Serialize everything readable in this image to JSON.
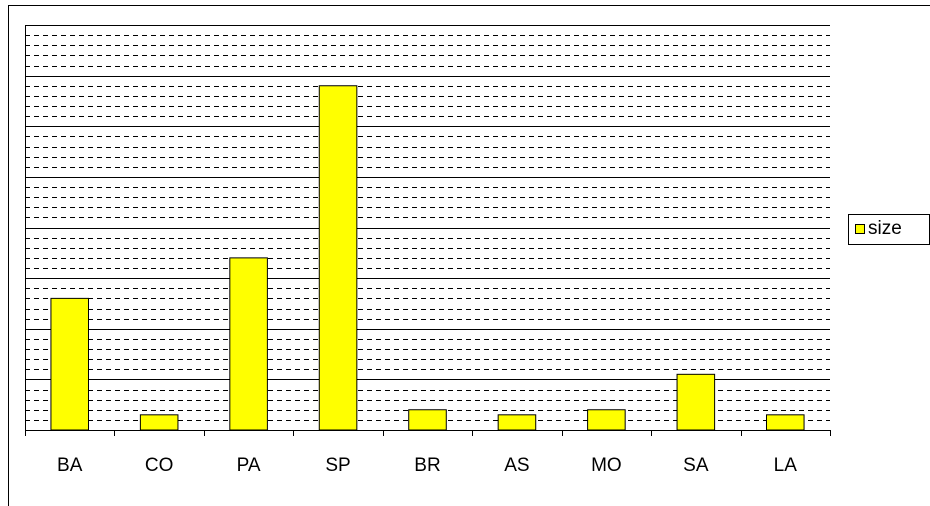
{
  "chart_data": {
    "type": "bar",
    "categories": [
      "BA",
      "CO",
      "PA",
      "SP",
      "BR",
      "AS",
      "MO",
      "SA",
      "LA"
    ],
    "series": [
      {
        "name": "size",
        "color": "#ffff00",
        "values": [
          2.6,
          0.3,
          3.4,
          6.8,
          0.4,
          0.3,
          0.4,
          1.1,
          0.3
        ]
      }
    ],
    "ylim": [
      0,
      8
    ],
    "yticks": [
      0,
      1,
      2,
      3,
      4,
      5,
      6,
      7,
      8
    ],
    "minor_yticks": [
      0.2,
      0.4,
      0.6,
      0.8,
      1.2,
      1.4,
      1.6,
      1.8,
      2.2,
      2.4,
      2.6,
      2.8,
      3.2,
      3.4,
      3.6,
      3.8,
      4.2,
      4.4,
      4.6,
      4.8,
      5.2,
      5.4,
      5.6,
      5.8,
      6.2,
      6.4,
      6.6,
      6.8,
      7.2,
      7.4,
      7.6,
      7.8
    ],
    "grid": true,
    "legend": "right"
  }
}
